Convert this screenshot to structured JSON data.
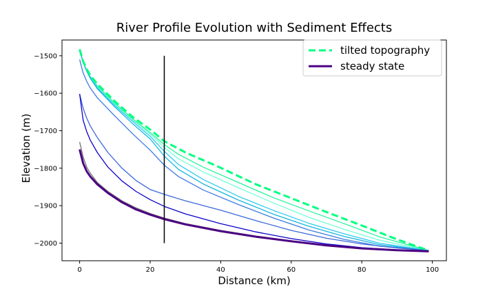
{
  "chart_data": {
    "type": "line",
    "title": "River Profile Evolution with Sediment Effects",
    "xlabel": "Distance (km)",
    "ylabel": "Elevation (m)",
    "xlim": [
      -5,
      104
    ],
    "ylim": [
      -2047,
      -1458
    ],
    "xticks": [
      0,
      20,
      40,
      60,
      80,
      100
    ],
    "yticks": [
      -1500,
      -1600,
      -1700,
      -1800,
      -1900,
      -2000
    ],
    "grid": false,
    "legend_position": "top-right",
    "legend": [
      {
        "label": "tilted topography",
        "color": "#00ff7f",
        "style": "dashed"
      },
      {
        "label": "steady state",
        "color": "#4b0082",
        "style": "solid"
      }
    ],
    "vertical_line": {
      "x": 24,
      "y_range": [
        -2000,
        -1500
      ],
      "color": "#000000"
    },
    "series": [
      {
        "color": "#00ff7f",
        "width": 3,
        "dash": true,
        "legend": true,
        "x": [
          0,
          1,
          2,
          3,
          5,
          10,
          15,
          20,
          24,
          30,
          40,
          50,
          60,
          70,
          80,
          90,
          99
        ],
        "y": [
          -1483,
          -1515,
          -1535,
          -1552,
          -1575,
          -1622,
          -1663,
          -1697,
          -1728,
          -1758,
          -1799,
          -1843,
          -1880,
          -1917,
          -1953,
          -1990,
          -2020
        ]
      },
      {
        "color": "#22f59a",
        "width": 1.3,
        "x": [
          0,
          1,
          2,
          3,
          5,
          10,
          15,
          20,
          24,
          28,
          35,
          45,
          55,
          65,
          75,
          85,
          99
        ],
        "y": [
          -1483,
          -1517,
          -1538,
          -1555,
          -1580,
          -1627,
          -1668,
          -1705,
          -1737,
          -1763,
          -1797,
          -1838,
          -1879,
          -1914,
          -1948,
          -1983,
          -2020
        ]
      },
      {
        "color": "#72ffd4",
        "width": 1.3,
        "x": [
          0,
          1,
          2,
          3,
          5,
          10,
          15,
          20,
          24,
          28,
          35,
          45,
          55,
          65,
          75,
          85,
          99
        ],
        "y": [
          -1483,
          -1518,
          -1540,
          -1557,
          -1583,
          -1630,
          -1671,
          -1709,
          -1745,
          -1775,
          -1810,
          -1852,
          -1893,
          -1931,
          -1963,
          -1992,
          -2020
        ]
      },
      {
        "color": "#2bcaf0",
        "width": 1.3,
        "x": [
          0,
          1,
          2,
          3,
          5,
          10,
          15,
          20,
          24,
          28,
          35,
          45,
          55,
          65,
          75,
          85,
          99
        ],
        "y": [
          -1483,
          -1518,
          -1540,
          -1558,
          -1585,
          -1633,
          -1675,
          -1715,
          -1755,
          -1790,
          -1830,
          -1875,
          -1913,
          -1947,
          -1975,
          -2000,
          -2020
        ]
      },
      {
        "color": "#16b4e0",
        "width": 1.3,
        "x": [
          0,
          1,
          2,
          3,
          5,
          10,
          15,
          20,
          24,
          28,
          35,
          45,
          55,
          65,
          75,
          85,
          99
        ],
        "y": [
          -1483,
          -1518,
          -1541,
          -1560,
          -1588,
          -1637,
          -1681,
          -1722,
          -1768,
          -1803,
          -1842,
          -1885,
          -1923,
          -1955,
          -1982,
          -2004,
          -2020
        ]
      },
      {
        "color": "#3a7ae0",
        "width": 1.3,
        "x": [
          0,
          1,
          2,
          3,
          5,
          10,
          15,
          20,
          24,
          28,
          35,
          45,
          55,
          65,
          75,
          85,
          99
        ],
        "y": [
          -1510,
          -1546,
          -1568,
          -1586,
          -1612,
          -1661,
          -1708,
          -1752,
          -1792,
          -1822,
          -1858,
          -1897,
          -1933,
          -1965,
          -1990,
          -2008,
          -2020
        ]
      },
      {
        "color": "#3a66d8",
        "width": 1.3,
        "x": [
          0,
          1,
          2,
          3,
          5,
          8,
          12,
          16,
          20,
          24,
          30,
          40,
          50,
          60,
          70,
          80,
          90,
          99
        ],
        "y": [
          -1602,
          -1640,
          -1666,
          -1687,
          -1718,
          -1758,
          -1800,
          -1833,
          -1857,
          -1870,
          -1887,
          -1912,
          -1940,
          -1966,
          -1987,
          -2002,
          -2013,
          -2020
        ]
      },
      {
        "color": "#0a00c8",
        "width": 1.3,
        "x": [
          0,
          1,
          2,
          3,
          5,
          8,
          12,
          16,
          20,
          24,
          30,
          40,
          50,
          60,
          70,
          80,
          90,
          99
        ],
        "y": [
          -1602,
          -1672,
          -1702,
          -1725,
          -1758,
          -1797,
          -1834,
          -1862,
          -1884,
          -1902,
          -1922,
          -1948,
          -1970,
          -1988,
          -2002,
          -2012,
          -2018,
          -2022
        ]
      },
      {
        "color": "#707070",
        "width": 1.3,
        "x": [
          0,
          1,
          2,
          3,
          5,
          8,
          12,
          16,
          20,
          24,
          30,
          40,
          50,
          60,
          70,
          80,
          90,
          99
        ],
        "y": [
          -1730,
          -1770,
          -1797,
          -1813,
          -1838,
          -1862,
          -1887,
          -1906,
          -1921,
          -1933,
          -1948,
          -1966,
          -1981,
          -1994,
          -2005,
          -2013,
          -2019,
          -2022
        ]
      },
      {
        "color": "#4b0082",
        "width": 3,
        "legend": true,
        "x": [
          0,
          1,
          2,
          3,
          5,
          8,
          12,
          16,
          20,
          24,
          30,
          40,
          50,
          60,
          70,
          80,
          90,
          99
        ],
        "y": [
          -1750,
          -1787,
          -1808,
          -1822,
          -1843,
          -1866,
          -1891,
          -1910,
          -1924,
          -1936,
          -1950,
          -1968,
          -1983,
          -1995,
          -2006,
          -2014,
          -2019,
          -2022
        ]
      }
    ]
  }
}
